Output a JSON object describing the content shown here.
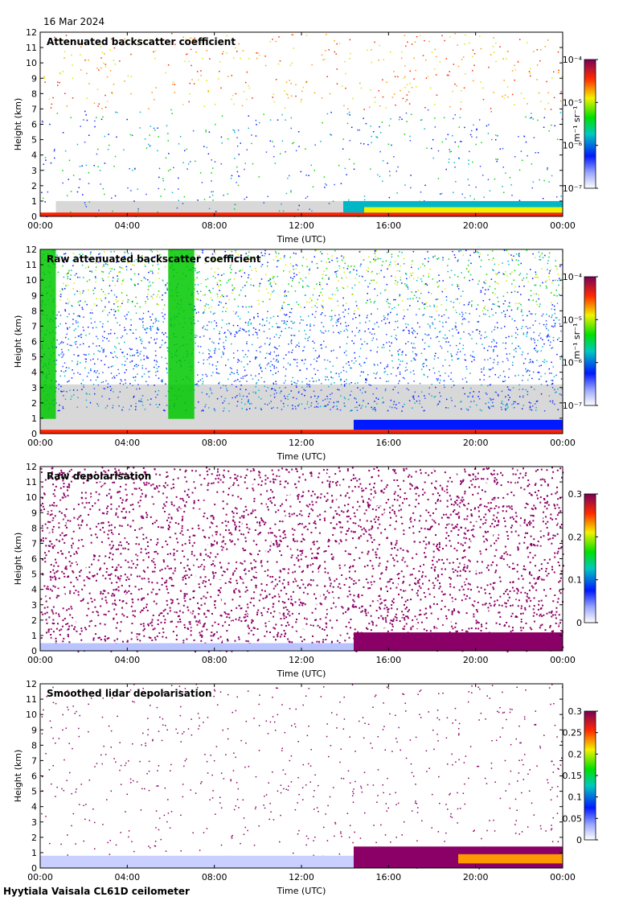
{
  "header": {
    "date": "16 Mar 2024"
  },
  "footer": {
    "instrument": "Hyytiala Vaisala CL61D ceilometer"
  },
  "chart_data": [
    {
      "type": "heatmap",
      "title": "Attenuated backscatter coefficient",
      "xlabel": "Time (UTC)",
      "ylabel": "Height (km)",
      "xticks": [
        "00:00",
        "04:00",
        "08:00",
        "12:00",
        "16:00",
        "20:00",
        "00:00"
      ],
      "yticks": [
        "0",
        "1",
        "2",
        "3",
        "4",
        "5",
        "6",
        "7",
        "8",
        "9",
        "10",
        "11",
        "12"
      ],
      "ylim": [
        0,
        12
      ],
      "colorbar": {
        "scale": "log",
        "ticks": [
          "10⁻⁷",
          "10⁻⁶",
          "10⁻⁵",
          "10⁻⁴"
        ],
        "unit": "m⁻¹ sr⁻¹"
      }
    },
    {
      "type": "heatmap",
      "title": "Raw attenuated backscatter coefficient",
      "xlabel": "Time (UTC)",
      "ylabel": "Height (km)",
      "xticks": [
        "00:00",
        "04:00",
        "08:00",
        "12:00",
        "16:00",
        "20:00",
        "00:00"
      ],
      "yticks": [
        "0",
        "1",
        "2",
        "3",
        "4",
        "5",
        "6",
        "7",
        "8",
        "9",
        "10",
        "11",
        "12"
      ],
      "ylim": [
        0,
        12
      ],
      "colorbar": {
        "scale": "log",
        "ticks": [
          "10⁻⁷",
          "10⁻⁶",
          "10⁻⁵",
          "10⁻⁴"
        ],
        "unit": "m⁻¹ sr⁻¹"
      }
    },
    {
      "type": "heatmap",
      "title": "Raw depolarisation",
      "xlabel": "Time (UTC)",
      "ylabel": "Height (km)",
      "xticks": [
        "00:00",
        "04:00",
        "08:00",
        "12:00",
        "16:00",
        "20:00",
        "00:00"
      ],
      "yticks": [
        "0",
        "1",
        "2",
        "3",
        "4",
        "5",
        "6",
        "7",
        "8",
        "9",
        "10",
        "11",
        "12"
      ],
      "ylim": [
        0,
        12
      ],
      "colorbar": {
        "scale": "linear",
        "ticks": [
          "0",
          "0.1",
          "0.2",
          "0.3"
        ],
        "unit": ""
      }
    },
    {
      "type": "heatmap",
      "title": "Smoothed lidar depolarisation",
      "xlabel": "Time (UTC)",
      "ylabel": "Height (km)",
      "xticks": [
        "00:00",
        "04:00",
        "08:00",
        "12:00",
        "16:00",
        "20:00",
        "00:00"
      ],
      "yticks": [
        "0",
        "1",
        "2",
        "3",
        "4",
        "5",
        "6",
        "7",
        "8",
        "9",
        "10",
        "11",
        "12"
      ],
      "ylim": [
        0,
        12
      ],
      "colorbar": {
        "scale": "linear",
        "ticks": [
          "0",
          "0.05",
          "0.1",
          "0.15",
          "0.2",
          "0.25",
          "0.3"
        ],
        "unit": ""
      }
    }
  ]
}
